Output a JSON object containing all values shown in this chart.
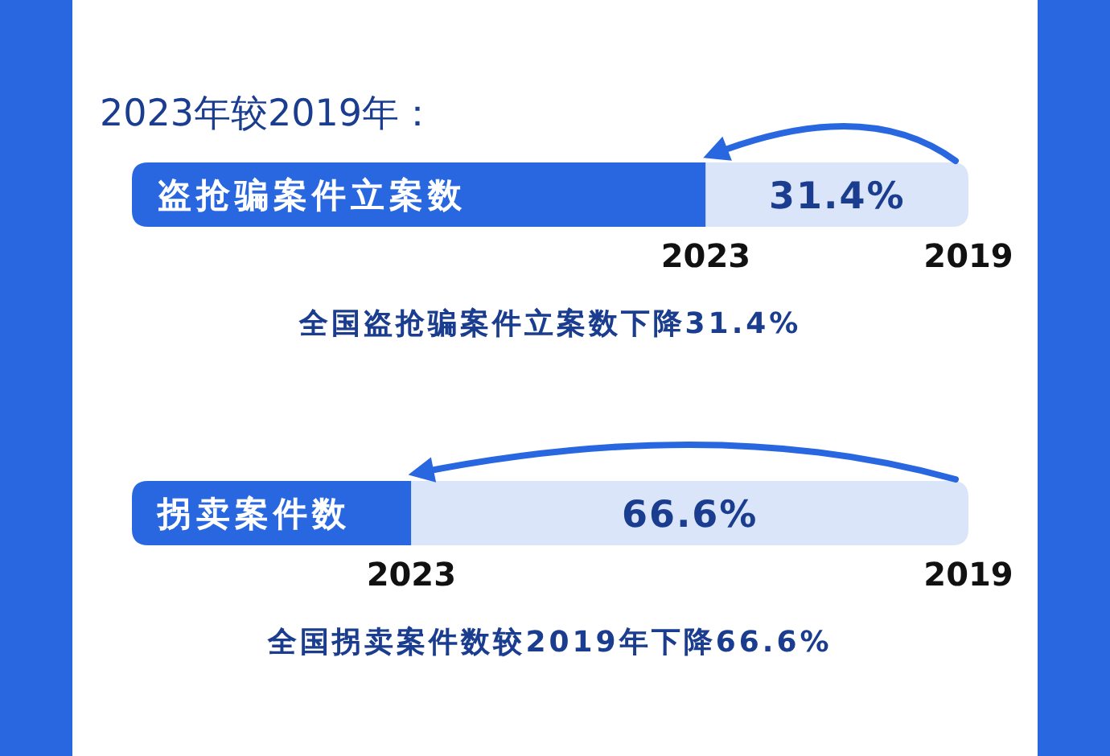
{
  "chart_data": [
    {
      "type": "bar",
      "orientation": "horizontal",
      "stacked": true,
      "title": "2023年较2019年：",
      "categories": [
        "盗抢骗案件立案数"
      ],
      "series": [
        {
          "color": "#2867e0",
          "values": [
            68.6
          ]
        },
        {
          "color": "#dae5fa",
          "values": [
            31.4
          ],
          "value_labels": [
            "31.4%"
          ]
        }
      ],
      "annotations": [
        {
          "text": "2023",
          "x": 68.6,
          "y": "盗抢骗案件立案数"
        },
        {
          "text": "2019",
          "x": 100,
          "y": "盗抢骗案件立案数"
        },
        "全国盗抢骗案件立案数下降31.4%"
      ]
    },
    {
      "type": "bar",
      "orientation": "horizontal",
      "stacked": true,
      "categories": [
        "拐卖案件数"
      ],
      "series": [
        {
          "color": "#2867e0",
          "values": [
            33.4
          ]
        },
        {
          "color": "#dae5fa",
          "values": [
            66.6
          ],
          "value_labels": [
            "66.6%"
          ]
        }
      ],
      "annotations": [
        {
          "text": "2023",
          "x": 33.4,
          "y": "拐卖案件数"
        },
        {
          "text": "2019",
          "x": 100,
          "y": "拐卖案件数"
        },
        "全国拐卖案件数较2019年下降66.6%"
      ]
    }
  ]
}
